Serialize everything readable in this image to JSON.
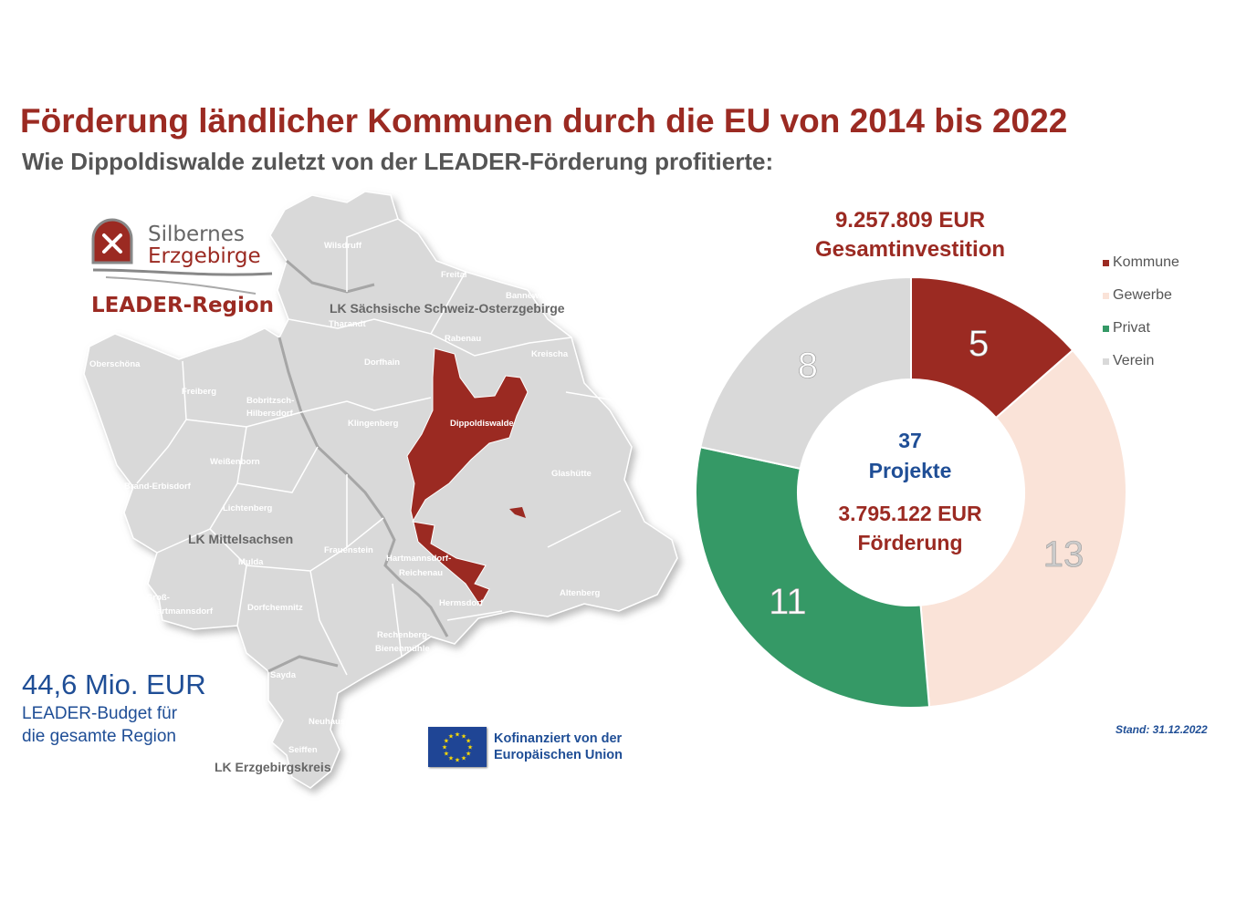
{
  "title": "Förderung ländlicher Kommunen durch die EU von 2014 bis 2022",
  "subtitle": "Wie Dippoldiswalde zuletzt von der LEADER-Förderung profitierte:",
  "logo": {
    "line1": "Silbernes",
    "line2": "Erzgebirge",
    "line3": "LEADER-Region"
  },
  "map": {
    "districts": [
      "LK Sächsische Schweiz-Osterzgebirge",
      "LK Mittelsachsen",
      "LK Erzgebirgskreis"
    ],
    "highlighted": "Dippoldiswalde",
    "municipalities": [
      "Wilsdruff",
      "Freital",
      "Bannewitz",
      "Tharandt",
      "Rabenau",
      "Kreischa",
      "Oberschöna",
      "Dorfhain",
      "Freiberg",
      "Bobritzsch-",
      "Hilbersdorf",
      "Klingenberg",
      "Weißenborn",
      "Glashütte",
      "Brand-Erbisdorf",
      "Lichtenberg",
      "Frauenstein",
      "Mulda",
      "Hartmannsdorf-",
      "Reichenau",
      "Groß-",
      "hartmannsdorf",
      "Dorfchemnitz",
      "Hermsdorf",
      "Altenberg",
      "Rechenberg-",
      "Bienenmühle",
      "Sayda",
      "Neuhausen",
      "Seiffen"
    ],
    "fill_color": "#d9d9d9",
    "highlight_color": "#9b2a22"
  },
  "budget": {
    "amount": "44,6 Mio. EUR",
    "line1": "LEADER-Budget für",
    "line2": "die gesamte Region"
  },
  "eu": {
    "line1": "Kofinanziert von der",
    "line2": "Europäischen Union",
    "icon": "eu-flag-icon"
  },
  "investment": {
    "amount": "9.257.809 EUR",
    "label": "Gesamtinvestition"
  },
  "center": {
    "count": "37",
    "projects_label": "Projekte",
    "funding_amount": "3.795.122 EUR",
    "funding_label": "Förderung"
  },
  "stand": "Stand: 31.12.2022",
  "chart_data": {
    "type": "pie",
    "donut": true,
    "categories": [
      "Kommune",
      "Gewerbe",
      "Privat",
      "Verein"
    ],
    "values": [
      5,
      13,
      11,
      8
    ],
    "colors": [
      "#9b2a22",
      "#fae3d8",
      "#359966",
      "#d9d9d9"
    ],
    "label_colors": [
      "#ffffff",
      "#cccccc",
      "#ffffff",
      "#ffffff"
    ],
    "legend_position": "top-right",
    "start_angle": "top, clockwise"
  }
}
